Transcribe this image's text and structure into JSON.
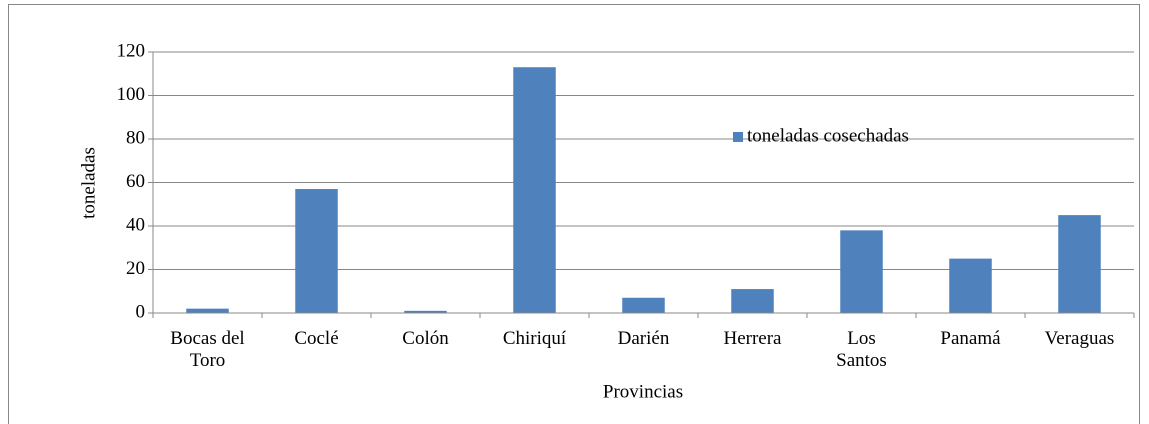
{
  "chart_data": {
    "type": "bar",
    "x_label": "Provincias",
    "y_label": "toneladas",
    "categories": [
      "Bocas del Toro",
      "Coclé",
      "Colón",
      "Chiriquí",
      "Darién",
      "Herrera",
      "Los Santos",
      "Panamá",
      "Veraguas"
    ],
    "series": [
      {
        "name": "toneladas cosechadas",
        "color": "#4f81bd",
        "values": [
          2,
          57,
          1,
          113,
          7,
          11,
          38,
          25,
          45
        ]
      }
    ],
    "ylim": [
      0,
      120
    ],
    "yticks": [
      0,
      20,
      40,
      60,
      80,
      100,
      120
    ],
    "grid": true,
    "legend": "upper-right"
  }
}
